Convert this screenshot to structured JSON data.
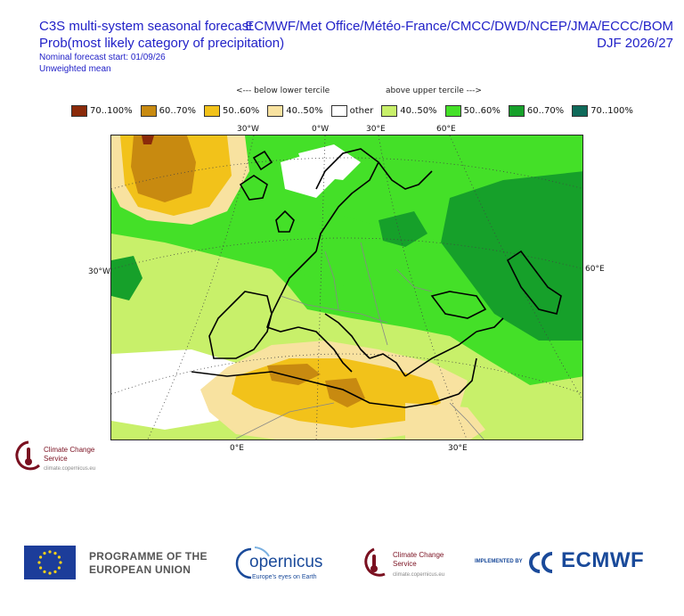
{
  "header": {
    "title": "C3S multi-system seasonal forecast",
    "subtitle": "Prob(most likely category of precipitation)",
    "start": "Nominal forecast start: 01/09/26",
    "mean": "Unweighted mean",
    "systems": "ECMWF/Met Office/Météo-France/CMCC/DWD/NCEP/JMA/ECCC/BOM",
    "season": "DJF 2026/27"
  },
  "tercile_labels": {
    "below": "<--- below lower tercile",
    "above": "above upper tercile --->"
  },
  "legend": [
    {
      "label": "70..100%",
      "color": "#8a2a0a"
    },
    {
      "label": "60..70%",
      "color": "#c88a10"
    },
    {
      "label": "50..60%",
      "color": "#f2c21a"
    },
    {
      "label": "40..50%",
      "color": "#f8e2a0"
    },
    {
      "label": "other",
      "color": "#ffffff"
    },
    {
      "label": "40..50%",
      "color": "#c8f06a"
    },
    {
      "label": "50..60%",
      "color": "#44e028"
    },
    {
      "label": "60..70%",
      "color": "#16a02a"
    },
    {
      "label": "70..100%",
      "color": "#0f6a5a"
    }
  ],
  "grid_labels": {
    "top": [
      "30°W",
      "0°W",
      "30°E",
      "60°E"
    ],
    "bottom": [
      "0°E",
      "30°E"
    ],
    "left": "30°W",
    "right": "60°E"
  },
  "logos": {
    "c3s_name": "Climate Change Service",
    "c3s_url": "climate.copernicus.eu",
    "eu_text": "PROGRAMME OF THE EUROPEAN UNION",
    "copernicus": "opernicus",
    "copernicus_tag": "Europe's eyes on Earth",
    "implemented_by": "IMPLEMENTED BY",
    "ecmwf": "ECMWF"
  }
}
